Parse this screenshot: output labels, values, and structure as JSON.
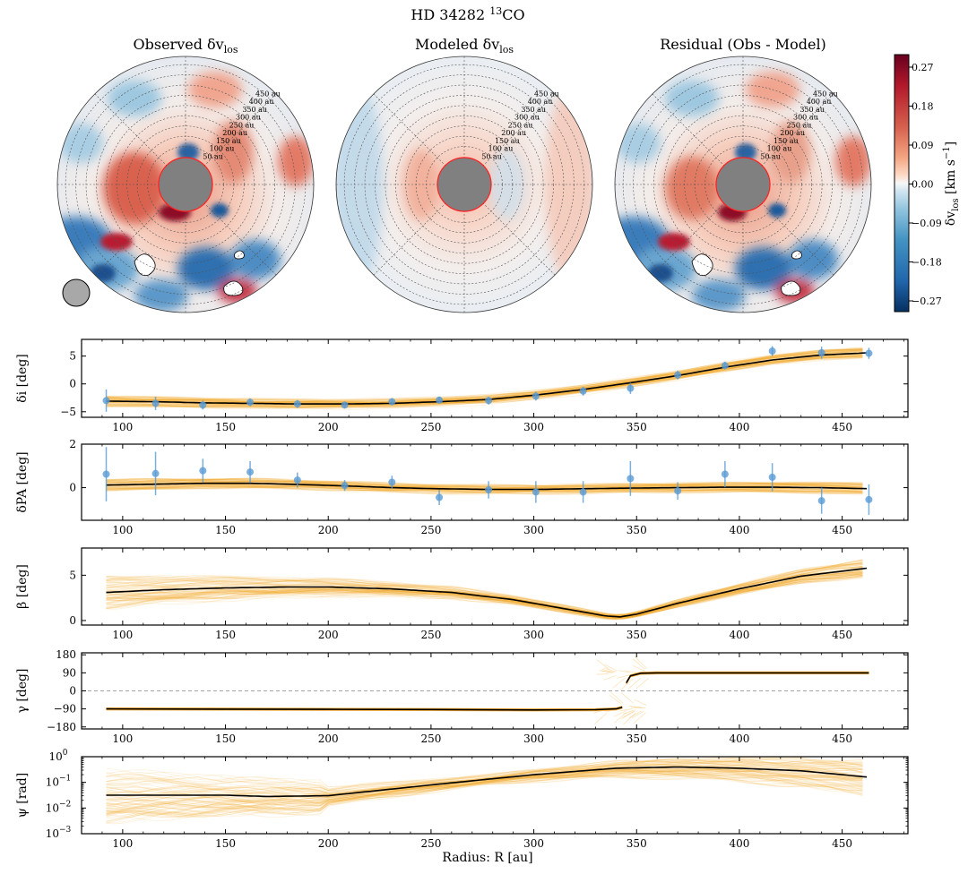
{
  "figure": {
    "title_main": "HD 34282 ",
    "title_sup": "13",
    "title_tail": "CO",
    "xlabel": "Radius: R [au]"
  },
  "colors": {
    "red": "#b2182b",
    "blue": "#2166ac",
    "orange": "#f5a623",
    "dark_orange": "#e8890c",
    "point": "#5a9bd4",
    "gray": "#808080",
    "mask": "#ff2020"
  },
  "maps": {
    "panels": [
      {
        "title": "Observed δv",
        "sub": "los"
      },
      {
        "title": "Modeled δv",
        "sub": "los"
      },
      {
        "title": "Residual (Obs - Model)",
        "sub": ""
      }
    ],
    "ring_labels": [
      "50 au",
      "100 au",
      "150 au",
      "200 au",
      "250 au",
      "300 au",
      "350 au",
      "400 au",
      "450 au"
    ],
    "colorbar": {
      "label": "δv",
      "label_sub": "los",
      "label_units": " [km s",
      "label_sup": "−1",
      "label_end": "]",
      "ticks": [
        "0.27",
        "0.18",
        "0.09",
        "0.00",
        "−0.09",
        "−0.18",
        "−0.27"
      ]
    }
  },
  "chart_data": [
    {
      "type": "line",
      "name": "delta_i",
      "ylabel": "δi [deg]",
      "xlim": [
        80,
        482
      ],
      "ylim": [
        -6,
        8
      ],
      "yticks": [
        -5,
        0,
        5
      ],
      "ytick_labels": [
        "−5",
        "0",
        "5"
      ],
      "xticks": [
        100,
        150,
        200,
        250,
        300,
        350,
        400,
        450
      ],
      "xtick_labels": [
        "100",
        "150",
        "200",
        "250",
        "300",
        "350",
        "400",
        "450"
      ],
      "curve_x": [
        92,
        116,
        139,
        162,
        185,
        208,
        231,
        254,
        278,
        301,
        324,
        347,
        370,
        393,
        416,
        440,
        463
      ],
      "curve_y": [
        -3.1,
        -3.2,
        -3.4,
        -3.5,
        -3.6,
        -3.6,
        -3.5,
        -3.2,
        -2.8,
        -2.0,
        -1.0,
        0.2,
        1.5,
        3.0,
        4.3,
        5.2,
        5.6
      ],
      "points_x": [
        92,
        116,
        139,
        162,
        185,
        208,
        231,
        254,
        278,
        301,
        324,
        347,
        370,
        393,
        416,
        440,
        463
      ],
      "points_y": [
        -3.0,
        -3.5,
        -3.8,
        -3.3,
        -3.6,
        -3.8,
        -3.2,
        -2.9,
        -3.0,
        -2.2,
        -1.3,
        -0.8,
        1.6,
        3.3,
        5.9,
        5.6,
        5.5
      ],
      "errors": [
        2.0,
        1.2,
        0.8,
        0.7,
        0.7,
        0.6,
        0.6,
        0.6,
        0.7,
        0.8,
        0.8,
        1.0,
        0.8,
        0.7,
        0.9,
        1.1,
        1.0
      ],
      "band": 0.9
    },
    {
      "type": "line",
      "name": "delta_pa",
      "ylabel": "δPA [deg]",
      "xlim": [
        80,
        482
      ],
      "ylim": [
        -1.5,
        2
      ],
      "yticks": [
        0,
        2
      ],
      "ytick_labels": [
        "0",
        "2"
      ],
      "xticks": [
        100,
        150,
        200,
        250,
        300,
        350,
        400,
        450
      ],
      "xtick_labels": [
        "100",
        "150",
        "200",
        "250",
        "300",
        "350",
        "400",
        "450"
      ],
      "curve_x": [
        92,
        116,
        139,
        162,
        185,
        208,
        231,
        254,
        278,
        301,
        324,
        347,
        370,
        393,
        416,
        440,
        463
      ],
      "curve_y": [
        0.12,
        0.16,
        0.2,
        0.2,
        0.15,
        0.08,
        0.0,
        -0.05,
        -0.08,
        -0.08,
        -0.05,
        -0.02,
        0.0,
        0.02,
        0.02,
        0.0,
        -0.05
      ],
      "points_x": [
        92,
        116,
        139,
        162,
        185,
        208,
        231,
        254,
        278,
        301,
        324,
        347,
        370,
        393,
        416,
        440,
        463
      ],
      "points_y": [
        0.62,
        0.65,
        0.78,
        0.72,
        0.35,
        0.1,
        0.25,
        -0.45,
        -0.1,
        -0.2,
        -0.2,
        0.42,
        -0.15,
        0.62,
        0.48,
        -0.6,
        -0.55
      ],
      "errors": [
        1.25,
        1.0,
        0.55,
        0.5,
        0.35,
        0.25,
        0.3,
        0.35,
        0.4,
        0.5,
        0.5,
        0.8,
        0.4,
        0.6,
        0.65,
        0.6,
        0.7
      ],
      "band": 0.25
    },
    {
      "type": "line",
      "name": "beta",
      "ylabel": "β [deg]",
      "xlim": [
        80,
        482
      ],
      "ylim": [
        -0.5,
        8
      ],
      "yticks": [
        0,
        5
      ],
      "ytick_labels": [
        "0",
        "5"
      ],
      "xticks": [
        100,
        150,
        200,
        250,
        300,
        350,
        400,
        450
      ],
      "xtick_labels": [
        "100",
        "150",
        "200",
        "250",
        "300",
        "350",
        "400",
        "450"
      ],
      "curve_x": [
        92,
        120,
        150,
        180,
        200,
        230,
        260,
        290,
        315,
        335,
        342,
        350,
        370,
        400,
        430,
        463
      ],
      "curve_y": [
        3.1,
        3.4,
        3.6,
        3.7,
        3.7,
        3.5,
        3.1,
        2.3,
        1.3,
        0.5,
        0.4,
        0.7,
        1.9,
        3.5,
        4.9,
        5.8
      ],
      "band": 0.9
    },
    {
      "type": "line",
      "name": "gamma",
      "ylabel": "γ [deg]",
      "xlim": [
        80,
        482
      ],
      "ylim": [
        -190,
        190
      ],
      "yticks": [
        -180,
        -90,
        0,
        90,
        180
      ],
      "ytick_labels": [
        "−180",
        "−90",
        "0",
        "90",
        "180"
      ],
      "xticks": [
        100,
        150,
        200,
        250,
        300,
        350,
        400,
        450
      ],
      "xtick_labels": [
        "100",
        "150",
        "200",
        "250",
        "300",
        "350",
        "400",
        "450"
      ],
      "segments": [
        {
          "x": [
            92,
            150,
            200,
            250,
            300,
            330,
            340,
            343
          ],
          "y": [
            -90,
            -91,
            -92,
            -93,
            -95,
            -94,
            -90,
            -82
          ]
        },
        {
          "x": [
            345,
            347,
            352,
            360,
            400,
            463
          ],
          "y": [
            40,
            75,
            88,
            90,
            90,
            90
          ]
        }
      ],
      "band": 6
    },
    {
      "type": "line",
      "name": "psi",
      "ylabel": "ψ [rad]",
      "scale": "log",
      "xlim": [
        80,
        482
      ],
      "ylim_log": [
        -3,
        0
      ],
      "yticks_log": [
        -3,
        -2,
        -1,
        0
      ],
      "ytick_base": "10",
      "ytick_exps": [
        "−3",
        "−2",
        "−1",
        "0"
      ],
      "xticks": [
        100,
        150,
        200,
        250,
        300,
        350,
        400,
        450
      ],
      "xtick_labels": [
        "100",
        "150",
        "200",
        "250",
        "300",
        "350",
        "400",
        "450"
      ],
      "curve_x": [
        92,
        150,
        170,
        200,
        250,
        300,
        340,
        370,
        400,
        430,
        463
      ],
      "curve_log": [
        -1.5,
        -1.5,
        -1.55,
        -1.52,
        -1.1,
        -0.7,
        -0.45,
        -0.4,
        -0.45,
        -0.55,
        -0.8
      ],
      "band_log": 0.5
    }
  ]
}
